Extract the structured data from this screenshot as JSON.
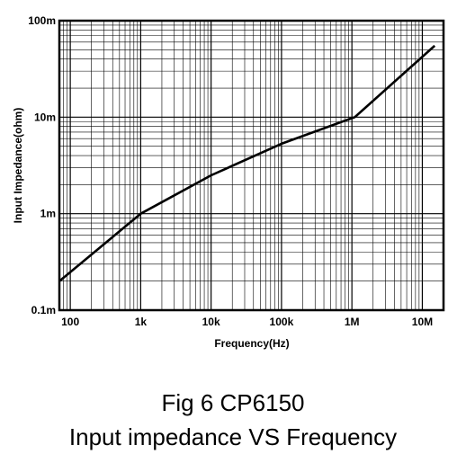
{
  "chart_data": {
    "type": "line",
    "title": "",
    "xlabel": "Frequency(Hz)",
    "ylabel": "Input Impedance(ohm)",
    "x_scale": "log",
    "y_scale": "log",
    "xlim": [
      70,
      20000000
    ],
    "ylim": [
      0.1,
      100
    ],
    "x_ticks": [
      {
        "value": 100,
        "label": "100"
      },
      {
        "value": 1000,
        "label": "1k"
      },
      {
        "value": 10000,
        "label": "10k"
      },
      {
        "value": 100000,
        "label": "100k"
      },
      {
        "value": 1000000,
        "label": "1M"
      },
      {
        "value": 10000000,
        "label": "10M"
      }
    ],
    "y_ticks": [
      {
        "value": 0.1,
        "label": "0.1m"
      },
      {
        "value": 1,
        "label": "1m"
      },
      {
        "value": 10,
        "label": "10m"
      },
      {
        "value": 100,
        "label": "100m"
      }
    ],
    "grid": true,
    "series": [
      {
        "x": [
          70,
          1000,
          10000,
          100000,
          1100000,
          15000000
        ],
        "y": [
          0.2,
          1.0,
          2.5,
          5.3,
          10,
          55
        ]
      }
    ]
  },
  "caption": {
    "line1": "Fig 6 CP6150",
    "line2": "Input impedance VS Frequency"
  }
}
